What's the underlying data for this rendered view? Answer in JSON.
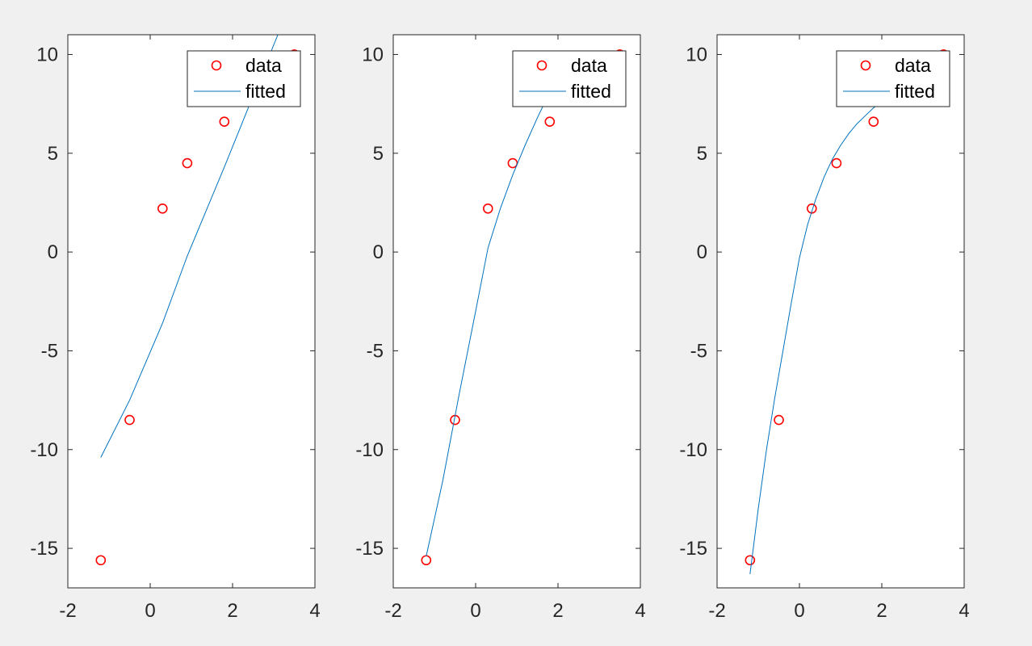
{
  "figure": {
    "background": "#f0f0f0",
    "axes_background": "#ffffff",
    "axis_color": "#262626"
  },
  "chart_data": [
    {
      "type": "line",
      "subplot": 1,
      "xlim": [
        -2,
        4
      ],
      "ylim": [
        -17,
        11
      ],
      "xticks": [
        -2,
        0,
        2,
        4
      ],
      "yticks": [
        -15,
        -10,
        -5,
        0,
        5,
        10
      ],
      "xtick_labels": [
        "-2",
        "0",
        "2",
        "4"
      ],
      "ytick_labels": [
        "-15",
        "-10",
        "-5",
        "0",
        "5",
        "10"
      ],
      "grid": false,
      "legend": {
        "placement": "top-right",
        "entries": [
          "data",
          "fitted"
        ]
      },
      "series": [
        {
          "name": "data",
          "style": "markers",
          "marker": "circle",
          "color": "#ff0000",
          "x": [
            -1.2,
            -0.5,
            0.3,
            0.9,
            1.8,
            3.5
          ],
          "y": [
            -15.6,
            -8.5,
            2.2,
            4.5,
            6.6,
            10.0
          ]
        },
        {
          "name": "fitted",
          "style": "line",
          "color": "#0072bd",
          "x": [
            -1.2,
            -0.5,
            0.3,
            0.9,
            1.8,
            3.1
          ],
          "y": [
            -10.4,
            -7.5,
            -3.6,
            -0.2,
            4.3,
            11.0
          ]
        }
      ]
    },
    {
      "type": "line",
      "subplot": 2,
      "xlim": [
        -2,
        4
      ],
      "ylim": [
        -17,
        11
      ],
      "xticks": [
        -2,
        0,
        2,
        4
      ],
      "yticks": [
        -15,
        -10,
        -5,
        0,
        5,
        10
      ],
      "xtick_labels": [
        "-2",
        "0",
        "2",
        "4"
      ],
      "ytick_labels": [
        "-15",
        "-10",
        "-5",
        "0",
        "5",
        "10"
      ],
      "grid": false,
      "legend": {
        "placement": "top-right",
        "entries": [
          "data",
          "fitted"
        ]
      },
      "series": [
        {
          "name": "data",
          "style": "markers",
          "marker": "circle",
          "color": "#ff0000",
          "x": [
            -1.2,
            -0.5,
            0.3,
            0.9,
            1.8,
            3.5
          ],
          "y": [
            -15.6,
            -8.5,
            2.2,
            4.5,
            6.6,
            10.0
          ]
        },
        {
          "name": "fitted",
          "style": "line",
          "color": "#0072bd",
          "x": [
            -1.2,
            -0.8,
            -0.4,
            0.0,
            0.3,
            0.6,
            0.9,
            1.2,
            1.5,
            1.8,
            2.1
          ],
          "y": [
            -15.4,
            -11.6,
            -7.2,
            -3.0,
            0.2,
            2.2,
            3.9,
            5.4,
            6.8,
            8.1,
            9.3
          ]
        }
      ]
    },
    {
      "type": "line",
      "subplot": 3,
      "xlim": [
        -2,
        4
      ],
      "ylim": [
        -17,
        11
      ],
      "xticks": [
        -2,
        0,
        2,
        4
      ],
      "yticks": [
        -15,
        -10,
        -5,
        0,
        5,
        10
      ],
      "xtick_labels": [
        "-2",
        "0",
        "2",
        "4"
      ],
      "ytick_labels": [
        "-15",
        "-10",
        "-5",
        "0",
        "5",
        "10"
      ],
      "grid": false,
      "legend": {
        "placement": "top-right",
        "entries": [
          "data",
          "fitted"
        ]
      },
      "series": [
        {
          "name": "data",
          "style": "markers",
          "marker": "circle",
          "color": "#ff0000",
          "x": [
            -1.2,
            -0.5,
            0.3,
            0.9,
            1.8,
            3.5
          ],
          "y": [
            -15.6,
            -8.5,
            2.2,
            4.5,
            6.6,
            10.0
          ]
        },
        {
          "name": "fitted",
          "style": "line",
          "color": "#0072bd",
          "x": [
            -1.2,
            -1.0,
            -0.8,
            -0.6,
            -0.4,
            -0.2,
            0.0,
            0.2,
            0.4,
            0.6,
            0.8,
            1.0,
            1.2,
            1.4,
            1.6,
            1.8,
            1.95
          ],
          "y": [
            -16.3,
            -13.0,
            -10.0,
            -7.4,
            -5.0,
            -2.6,
            -0.3,
            1.4,
            2.7,
            3.8,
            4.7,
            5.4,
            6.0,
            6.5,
            6.9,
            7.3,
            7.5
          ]
        }
      ]
    }
  ]
}
